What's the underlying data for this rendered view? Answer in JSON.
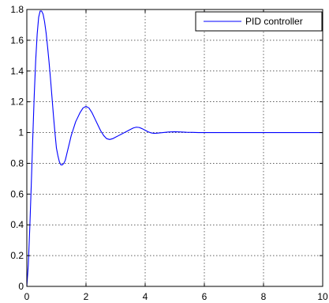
{
  "chart_data": {
    "type": "line",
    "title": "",
    "xlabel": "",
    "ylabel": "",
    "xlim": [
      0,
      10
    ],
    "ylim": [
      0,
      1.8
    ],
    "grid": true,
    "legend_position": "top-right",
    "x_ticks": [
      0,
      2,
      4,
      6,
      8,
      10
    ],
    "y_ticks": [
      0,
      0.2,
      0.4,
      0.6,
      0.8,
      1,
      1.2,
      1.4,
      1.6,
      1.8
    ],
    "series": [
      {
        "name": "PID controller",
        "color": "#0000ff",
        "x": [
          0,
          0.05,
          0.1,
          0.15,
          0.2,
          0.25,
          0.3,
          0.35,
          0.4,
          0.45,
          0.5,
          0.55,
          0.6,
          0.65,
          0.7,
          0.75,
          0.8,
          0.85,
          0.9,
          0.95,
          1.0,
          1.05,
          1.1,
          1.15,
          1.2,
          1.25,
          1.3,
          1.35,
          1.4,
          1.45,
          1.5,
          1.55,
          1.6,
          1.65,
          1.7,
          1.8,
          1.9,
          2.0,
          2.1,
          2.2,
          2.3,
          2.4,
          2.5,
          2.6,
          2.7,
          2.8,
          2.9,
          3.0,
          3.1,
          3.2,
          3.3,
          3.4,
          3.5,
          3.6,
          3.7,
          3.8,
          3.9,
          4.0,
          4.1,
          4.2,
          4.3,
          4.4,
          4.5,
          4.6,
          4.7,
          4.8,
          5.0,
          5.2,
          5.4,
          5.6,
          5.8,
          6.0,
          6.5,
          7.0,
          7.5,
          8.0,
          8.5,
          9.0,
          9.5,
          10.0
        ],
        "y": [
          0,
          0.14,
          0.38,
          0.66,
          0.96,
          1.24,
          1.47,
          1.64,
          1.75,
          1.79,
          1.79,
          1.77,
          1.72,
          1.65,
          1.56,
          1.46,
          1.35,
          1.23,
          1.11,
          1.0,
          0.9,
          0.85,
          0.81,
          0.79,
          0.79,
          0.8,
          0.82,
          0.86,
          0.9,
          0.94,
          0.98,
          1.01,
          1.04,
          1.07,
          1.09,
          1.13,
          1.16,
          1.17,
          1.16,
          1.13,
          1.09,
          1.05,
          1.01,
          0.98,
          0.96,
          0.955,
          0.96,
          0.97,
          0.98,
          0.99,
          1.0,
          1.01,
          1.02,
          1.03,
          1.035,
          1.033,
          1.025,
          1.015,
          1.005,
          0.998,
          0.995,
          0.996,
          0.998,
          1.0,
          1.002,
          1.004,
          1.005,
          1.004,
          1.002,
          1.001,
          1.0,
          1.0,
          1.0,
          1.0,
          1.0,
          1.0,
          1.0,
          1.0,
          1.0,
          1.0
        ]
      }
    ]
  }
}
